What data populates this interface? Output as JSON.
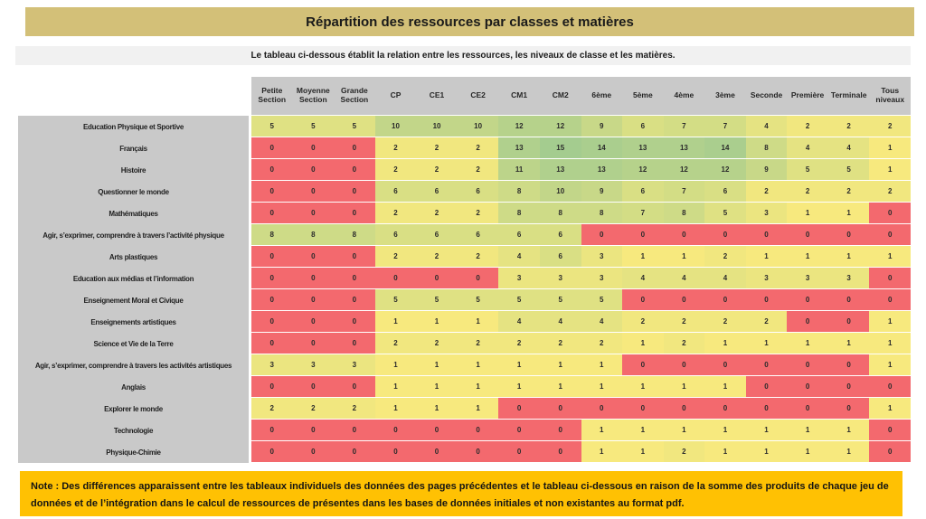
{
  "title": "Répartition des ressources par classes et matières",
  "subtitle": "Le tableau ci-dessous établit la relation entre les ressources, les niveaux de classe et les matières.",
  "note": "Note : Des différences apparaissent entre les tableaux individuels des données des pages précédentes et le tableau ci-dessous en raison de la somme des produits de chaque jeu de données et de l’intégration dans le calcul de ressources de présentes dans les bases de données initiales et non existantes au format pdf.",
  "colors": {
    "title_bg": "#D3C078",
    "subtitle_bg": "#F1F1F1",
    "header_bg": "#C9C9C9",
    "note_bg": "#FFC103",
    "scale_zero": "#F3696E",
    "scale_mid": "#F7E97E",
    "scale_max": "#A4CC8F"
  },
  "chart_data": {
    "type": "heatmap",
    "title": "Répartition des ressources par classes et matières",
    "color_scale": {
      "zero_value": 0,
      "mid_value": 1,
      "max_value": 15,
      "zero_color": "#F3696E",
      "mid_color": "#F7E97E",
      "max_color": "#A4CC8F"
    },
    "columns": [
      "Petite Section",
      "Moyenne Section",
      "Grande Section",
      "CP",
      "CE1",
      "CE2",
      "CM1",
      "CM2",
      "6ème",
      "5ème",
      "4ème",
      "3ème",
      "Seconde",
      "Première",
      "Terminale",
      "Tous niveaux"
    ],
    "rows": [
      {
        "label": "Education Physique et Sportive",
        "values": [
          5,
          5,
          5,
          10,
          10,
          10,
          12,
          12,
          9,
          6,
          7,
          7,
          4,
          2,
          2,
          2
        ]
      },
      {
        "label": "Français",
        "values": [
          0,
          0,
          0,
          2,
          2,
          2,
          13,
          15,
          14,
          13,
          13,
          14,
          8,
          4,
          4,
          1
        ]
      },
      {
        "label": "Histoire",
        "values": [
          0,
          0,
          0,
          2,
          2,
          2,
          11,
          13,
          13,
          12,
          12,
          12,
          9,
          5,
          5,
          1
        ]
      },
      {
        "label": "Questionner le monde",
        "values": [
          0,
          0,
          0,
          6,
          6,
          6,
          8,
          10,
          9,
          6,
          7,
          6,
          2,
          2,
          2,
          2
        ]
      },
      {
        "label": "Mathématiques",
        "values": [
          0,
          0,
          0,
          2,
          2,
          2,
          8,
          8,
          8,
          7,
          8,
          5,
          3,
          1,
          1,
          0
        ]
      },
      {
        "label": "Agir, s’exprimer, comprendre à travers l’activité physique",
        "values": [
          8,
          8,
          8,
          6,
          6,
          6,
          6,
          6,
          0,
          0,
          0,
          0,
          0,
          0,
          0,
          0
        ]
      },
      {
        "label": "Arts plastiques",
        "values": [
          0,
          0,
          0,
          2,
          2,
          2,
          4,
          6,
          3,
          1,
          1,
          2,
          1,
          1,
          1,
          1
        ]
      },
      {
        "label": "Education aux médias et l’information",
        "values": [
          0,
          0,
          0,
          0,
          0,
          0,
          3,
          3,
          3,
          4,
          4,
          4,
          3,
          3,
          3,
          0
        ]
      },
      {
        "label": "Enseignement Moral et Civique",
        "values": [
          0,
          0,
          0,
          5,
          5,
          5,
          5,
          5,
          5,
          0,
          0,
          0,
          0,
          0,
          0,
          0
        ]
      },
      {
        "label": "Enseignements artistiques",
        "values": [
          0,
          0,
          0,
          1,
          1,
          1,
          4,
          4,
          4,
          2,
          2,
          2,
          2,
          0,
          0,
          1
        ]
      },
      {
        "label": "Science et Vie de la Terre",
        "values": [
          0,
          0,
          0,
          2,
          2,
          2,
          2,
          2,
          2,
          1,
          2,
          1,
          1,
          1,
          1,
          1
        ]
      },
      {
        "label": "Agir, s’exprimer, comprendre à travers les activités artistiques",
        "values": [
          3,
          3,
          3,
          1,
          1,
          1,
          1,
          1,
          1,
          0,
          0,
          0,
          0,
          0,
          0,
          1
        ]
      },
      {
        "label": "Anglais",
        "values": [
          0,
          0,
          0,
          1,
          1,
          1,
          1,
          1,
          1,
          1,
          1,
          1,
          0,
          0,
          0,
          0
        ]
      },
      {
        "label": "Explorer le monde",
        "values": [
          2,
          2,
          2,
          1,
          1,
          1,
          0,
          0,
          0,
          0,
          0,
          0,
          0,
          0,
          0,
          1
        ]
      },
      {
        "label": "Technologie",
        "values": [
          0,
          0,
          0,
          0,
          0,
          0,
          0,
          0,
          1,
          1,
          1,
          1,
          1,
          1,
          1,
          0
        ]
      },
      {
        "label": "Physique-Chimie",
        "values": [
          0,
          0,
          0,
          0,
          0,
          0,
          0,
          0,
          1,
          1,
          2,
          1,
          1,
          1,
          1,
          0
        ]
      }
    ]
  }
}
